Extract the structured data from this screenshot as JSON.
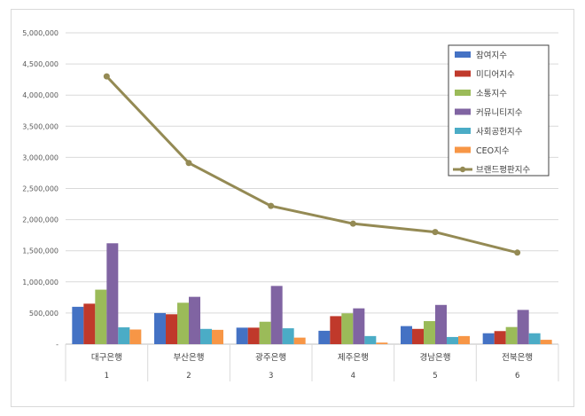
{
  "chart_data": {
    "type": "bar",
    "categories": [
      "대구은행",
      "부산은행",
      "광주은행",
      "제주은행",
      "경남은행",
      "전북은행"
    ],
    "sub_labels": [
      "1",
      "2",
      "3",
      "4",
      "5",
      "6"
    ],
    "ylim": [
      0,
      5000000
    ],
    "y_ticks": [
      "-",
      "500,000",
      "1,000,000",
      "1,500,000",
      "2,000,000",
      "2,500,000",
      "3,000,000",
      "3,500,000",
      "4,000,000",
      "4,500,000",
      "5,000,000"
    ],
    "grid": true,
    "legend_position": "top-right",
    "series": [
      {
        "name": "참여지수",
        "kind": "bar",
        "color": "#4472c4",
        "values": [
          600000,
          500000,
          265000,
          215000,
          290000,
          175000
        ]
      },
      {
        "name": "미디어지수",
        "kind": "bar",
        "color": "#c0392b",
        "values": [
          650000,
          480000,
          265000,
          450000,
          245000,
          210000
        ]
      },
      {
        "name": "소통지수",
        "kind": "bar",
        "color": "#9bbb59",
        "values": [
          875000,
          665000,
          360000,
          495000,
          370000,
          275000
        ]
      },
      {
        "name": "커뮤니티지수",
        "kind": "bar",
        "color": "#8064a2",
        "values": [
          1620000,
          760000,
          935000,
          575000,
          630000,
          550000
        ]
      },
      {
        "name": "사회공헌지수",
        "kind": "bar",
        "color": "#4bacc6",
        "values": [
          270000,
          245000,
          255000,
          130000,
          115000,
          175000
        ]
      },
      {
        "name": "CEO지수",
        "kind": "bar",
        "color": "#f79646",
        "values": [
          235000,
          230000,
          105000,
          25000,
          130000,
          70000
        ]
      },
      {
        "name": "브랜드평판지수",
        "kind": "line",
        "color": "#948a54",
        "values": [
          4300000,
          2910000,
          2220000,
          1935000,
          1800000,
          1470000
        ]
      }
    ]
  }
}
